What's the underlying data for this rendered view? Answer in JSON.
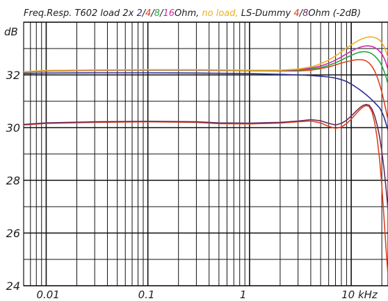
{
  "chart_data": {
    "type": "line",
    "title": {
      "parts": [
        {
          "text": "Freq.Resp. T602 load 2x ",
          "color": "#202020"
        },
        {
          "text": "2",
          "color": "#2c2c8c"
        },
        {
          "text": "/",
          "color": "#202020"
        },
        {
          "text": "4",
          "color": "#e0401c"
        },
        {
          "text": "/",
          "color": "#202020"
        },
        {
          "text": "8",
          "color": "#22a83a"
        },
        {
          "text": "/",
          "color": "#202020"
        },
        {
          "text": "16",
          "color": "#cc2aa8"
        },
        {
          "text": "Ohm, ",
          "color": "#202020"
        },
        {
          "text": "no load,",
          "color": "#f0b020"
        },
        {
          "text": "  LS-Dummy ",
          "color": "#202020"
        },
        {
          "text": "4",
          "color": "#e0401c"
        },
        {
          "text": "/",
          "color": "#202020"
        },
        {
          "text": "8",
          "color": "#6a2a5a"
        },
        {
          "text": "Ohm (-2dB)",
          "color": "#202020"
        }
      ]
    },
    "ylabel": "dB",
    "xlabel": "kHz",
    "x_scale": "log",
    "xlim": [
      0.006,
      23
    ],
    "ylim": [
      24,
      34
    ],
    "y_ticks": [
      24,
      26,
      28,
      30,
      32
    ],
    "y_tick_labels": [
      "24",
      "26",
      "28",
      "30",
      "32"
    ],
    "x_ticks": [
      0.01,
      0.1,
      1,
      10
    ],
    "x_tick_labels": [
      "0.01",
      "0.1",
      "1",
      "10 kHz"
    ],
    "grid": true,
    "background": "#ffffff",
    "grid_color": "#111111",
    "series": [
      {
        "color": "#2c2c8c",
        "x": [
          0.006,
          0.01,
          0.03,
          0.1,
          0.3,
          1,
          2,
          3,
          4,
          5,
          6,
          7,
          8,
          9,
          10,
          11,
          12,
          13,
          14,
          15,
          16,
          17,
          18,
          19,
          20,
          21,
          22,
          23
        ],
        "y": [
          32.05,
          32.07,
          32.08,
          32.08,
          32.07,
          32.05,
          32.02,
          32.0,
          31.98,
          31.95,
          31.92,
          31.88,
          31.82,
          31.75,
          31.65,
          31.55,
          31.45,
          31.35,
          31.25,
          31.15,
          31.05,
          30.95,
          30.85,
          30.75,
          30.6,
          30.4,
          30.15,
          29.9
        ]
      },
      {
        "color": "#e0401c",
        "x": [
          0.006,
          0.01,
          0.03,
          0.1,
          0.3,
          1,
          2,
          3,
          4,
          5,
          6,
          7,
          8,
          9,
          10,
          11,
          12,
          13,
          14,
          15,
          16,
          17,
          18,
          19,
          20,
          21,
          22,
          23
        ],
        "y": [
          32.1,
          32.15,
          32.17,
          32.18,
          32.18,
          32.16,
          32.15,
          32.15,
          32.18,
          32.24,
          32.3,
          32.38,
          32.45,
          32.5,
          32.54,
          32.57,
          32.58,
          32.57,
          32.53,
          32.45,
          32.32,
          32.15,
          31.92,
          31.65,
          31.35,
          31.0,
          30.65,
          30.3
        ]
      },
      {
        "color": "#22a83a",
        "x": [
          0.006,
          0.01,
          0.03,
          0.1,
          0.3,
          1,
          2,
          3,
          4,
          5,
          6,
          7,
          8,
          9,
          10,
          11,
          12,
          13,
          14,
          15,
          16,
          17,
          18,
          19,
          20,
          21,
          22,
          23
        ],
        "y": [
          32.1,
          32.15,
          32.17,
          32.18,
          32.18,
          32.16,
          32.16,
          32.18,
          32.22,
          32.28,
          32.36,
          32.46,
          32.56,
          32.66,
          32.74,
          32.81,
          32.86,
          32.88,
          32.88,
          32.85,
          32.8,
          32.72,
          32.62,
          32.5,
          32.35,
          32.15,
          31.92,
          31.65
        ]
      },
      {
        "color": "#cc2aa8",
        "x": [
          0.006,
          0.01,
          0.03,
          0.1,
          0.3,
          1,
          2,
          3,
          4,
          5,
          6,
          7,
          8,
          9,
          10,
          11,
          12,
          13,
          14,
          15,
          16,
          17,
          18,
          19,
          20,
          21,
          22,
          23
        ],
        "y": [
          32.11,
          32.16,
          32.18,
          32.19,
          32.19,
          32.17,
          32.17,
          32.2,
          32.26,
          32.34,
          32.44,
          32.56,
          32.68,
          32.8,
          32.9,
          32.98,
          33.04,
          33.08,
          33.1,
          33.1,
          33.08,
          33.04,
          32.98,
          32.9,
          32.8,
          32.65,
          32.45,
          32.2
        ]
      },
      {
        "color": "#f0b020",
        "x": [
          0.006,
          0.01,
          0.03,
          0.1,
          0.3,
          1,
          2,
          3,
          4,
          5,
          6,
          7,
          8,
          9,
          10,
          11,
          12,
          13,
          14,
          15,
          16,
          17,
          18,
          19,
          20,
          21,
          22,
          23
        ],
        "y": [
          32.12,
          32.17,
          32.19,
          32.2,
          32.2,
          32.18,
          32.18,
          32.22,
          32.3,
          32.42,
          32.56,
          32.72,
          32.88,
          33.02,
          33.14,
          33.24,
          33.32,
          33.38,
          33.42,
          33.44,
          33.44,
          33.42,
          33.38,
          33.32,
          33.22,
          33.08,
          32.9,
          32.65
        ]
      },
      {
        "color": "#e0401c",
        "x": [
          0.006,
          0.01,
          0.03,
          0.1,
          0.3,
          0.5,
          1,
          2,
          3,
          4,
          5,
          6,
          7,
          8,
          9,
          10,
          11,
          12,
          13,
          14,
          15,
          16,
          17,
          18,
          19,
          20,
          21,
          22,
          23
        ],
        "y": [
          30.1,
          30.16,
          30.2,
          30.22,
          30.2,
          30.15,
          30.14,
          30.17,
          30.22,
          30.25,
          30.18,
          30.05,
          29.97,
          30.02,
          30.15,
          30.32,
          30.5,
          30.66,
          30.78,
          30.84,
          30.8,
          30.6,
          30.2,
          29.6,
          28.8,
          27.8,
          26.6,
          25.4,
          24.4
        ]
      },
      {
        "color": "#6a2a5a",
        "x": [
          0.006,
          0.01,
          0.03,
          0.1,
          0.3,
          0.5,
          1,
          2,
          3,
          4,
          5,
          6,
          7,
          8,
          9,
          10,
          11,
          12,
          13,
          14,
          15,
          16,
          17,
          18,
          19,
          20,
          21,
          22,
          23
        ],
        "y": [
          30.12,
          30.18,
          30.22,
          30.24,
          30.22,
          30.18,
          30.17,
          30.2,
          30.25,
          30.3,
          30.26,
          30.16,
          30.1,
          30.16,
          30.28,
          30.44,
          30.6,
          30.74,
          30.84,
          30.88,
          30.85,
          30.7,
          30.45,
          30.1,
          29.65,
          29.1,
          28.45,
          27.7,
          26.9
        ]
      }
    ]
  }
}
